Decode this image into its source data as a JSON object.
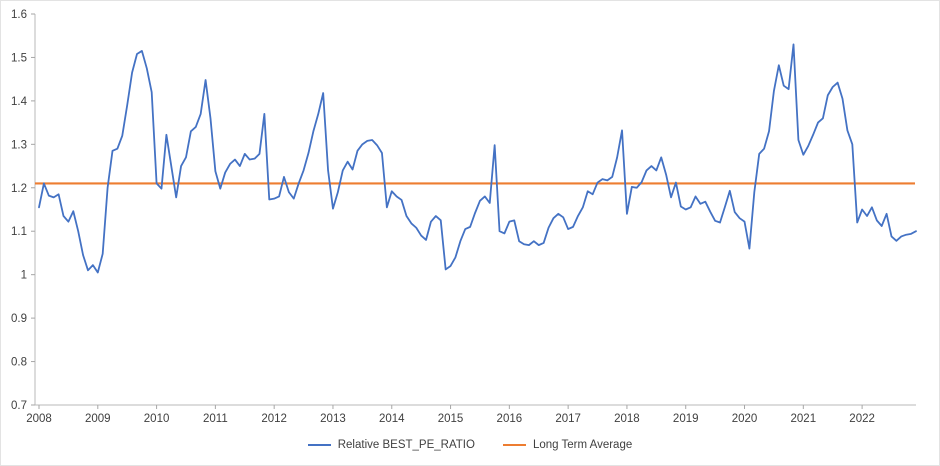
{
  "chart_data": {
    "type": "line",
    "title": "",
    "grid": false,
    "legend_position": "bottom-center",
    "x_axis": {
      "tick_labels": [
        "2008",
        "2009",
        "2010",
        "2011",
        "2012",
        "2013",
        "2014",
        "2015",
        "2016",
        "2017",
        "2018",
        "2019",
        "2020",
        "2021",
        "2022"
      ],
      "interval": "monthly",
      "points_per_year": 12
    },
    "y_axis": {
      "min": 0.7,
      "max": 1.6,
      "tick_labels": [
        "1.6",
        "1.5",
        "1.4",
        "1.3",
        "1.2",
        "1.1",
        "1",
        "0.9",
        "0.8",
        "0.7"
      ]
    },
    "series": [
      {
        "name": "Relative BEST_PE_RATIO",
        "type": "line",
        "color": "#4472C4",
        "values": [
          1.155,
          1.21,
          1.182,
          1.178,
          1.185,
          1.135,
          1.122,
          1.146,
          1.1,
          1.045,
          1.01,
          1.022,
          1.005,
          1.048,
          1.2,
          1.285,
          1.29,
          1.32,
          1.39,
          1.465,
          1.508,
          1.515,
          1.475,
          1.42,
          1.21,
          1.198,
          1.322,
          1.25,
          1.178,
          1.25,
          1.27,
          1.33,
          1.34,
          1.37,
          1.448,
          1.36,
          1.238,
          1.198,
          1.235,
          1.255,
          1.265,
          1.25,
          1.278,
          1.265,
          1.267,
          1.278,
          1.37,
          1.173,
          1.175,
          1.18,
          1.225,
          1.19,
          1.175,
          1.21,
          1.24,
          1.28,
          1.33,
          1.37,
          1.418,
          1.24,
          1.152,
          1.19,
          1.24,
          1.26,
          1.242,
          1.285,
          1.3,
          1.308,
          1.31,
          1.298,
          1.28,
          1.155,
          1.192,
          1.18,
          1.172,
          1.135,
          1.118,
          1.108,
          1.09,
          1.08,
          1.122,
          1.135,
          1.125,
          1.012,
          1.02,
          1.04,
          1.077,
          1.105,
          1.11,
          1.142,
          1.17,
          1.18,
          1.165,
          1.298,
          1.1,
          1.095,
          1.122,
          1.125,
          1.077,
          1.07,
          1.068,
          1.077,
          1.068,
          1.073,
          1.108,
          1.13,
          1.14,
          1.132,
          1.105,
          1.11,
          1.135,
          1.155,
          1.192,
          1.185,
          1.212,
          1.22,
          1.217,
          1.225,
          1.27,
          1.332,
          1.14,
          1.202,
          1.2,
          1.213,
          1.24,
          1.25,
          1.24,
          1.27,
          1.23,
          1.178,
          1.212,
          1.157,
          1.15,
          1.155,
          1.18,
          1.163,
          1.168,
          1.145,
          1.124,
          1.12,
          1.156,
          1.193,
          1.144,
          1.13,
          1.122,
          1.06,
          1.19,
          1.278,
          1.29,
          1.33,
          1.423,
          1.482,
          1.435,
          1.427,
          1.53,
          1.31,
          1.276,
          1.296,
          1.322,
          1.35,
          1.36,
          1.413,
          1.432,
          1.442,
          1.405,
          1.332,
          1.3,
          1.12,
          1.15,
          1.135,
          1.155,
          1.125,
          1.112,
          1.14,
          1.088,
          1.078,
          1.088,
          1.092,
          1.094,
          1.1
        ]
      },
      {
        "name": "Long Term Average",
        "type": "constant-line",
        "color": "#ED7D31",
        "value": 1.21
      }
    ]
  },
  "style": {
    "axis_color": "#b9b9b9",
    "tick_color": "#a6a6a6",
    "label_color": "#404040"
  }
}
